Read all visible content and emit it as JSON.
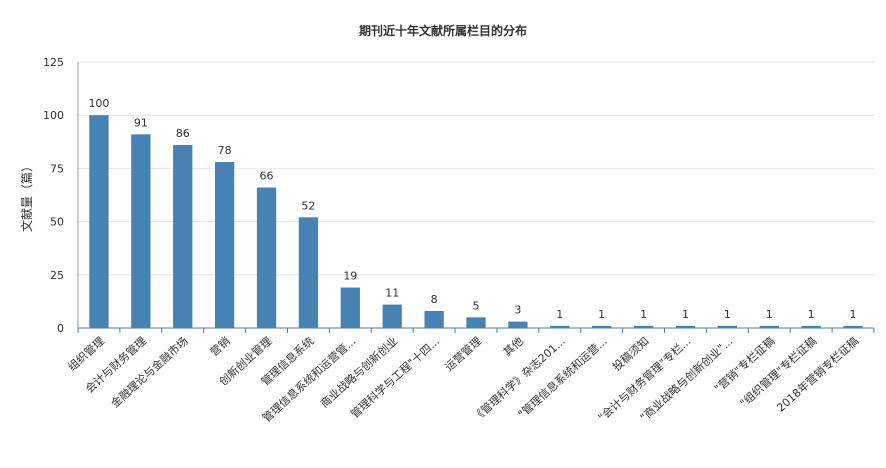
{
  "chart_data": {
    "type": "bar",
    "title": "期刊近十年文献所属栏目的分布",
    "xlabel": "",
    "ylabel": "文献量（篇）",
    "ylim": [
      0,
      125
    ],
    "yticks": [
      0,
      25,
      50,
      75,
      100,
      125
    ],
    "grid": true,
    "legend": "none",
    "bar_color": "#4682b4",
    "categories": [
      "组织管理",
      "会计与财务管理",
      "金融理论与金融市场",
      "营销",
      "创新创业管理",
      "管理信息系统",
      "管理信息系统和运营管...",
      "商业战略与创新创业",
      "管理科学与工程\"十四...",
      "运营管理",
      "其他",
      "《管理科学》杂志201...",
      "\"管理信息系统和运营...",
      "投稿须知",
      "\"会计与财务管理\"专栏...",
      "\"商业战略与创新创业\"...",
      "\"营销\"专栏征稿",
      "\"组织管理\"专栏征稿",
      "2018年营销专栏征稿"
    ],
    "values": [
      100,
      91,
      86,
      78,
      66,
      52,
      19,
      11,
      8,
      5,
      3,
      1,
      1,
      1,
      1,
      1,
      1,
      1,
      1
    ]
  }
}
